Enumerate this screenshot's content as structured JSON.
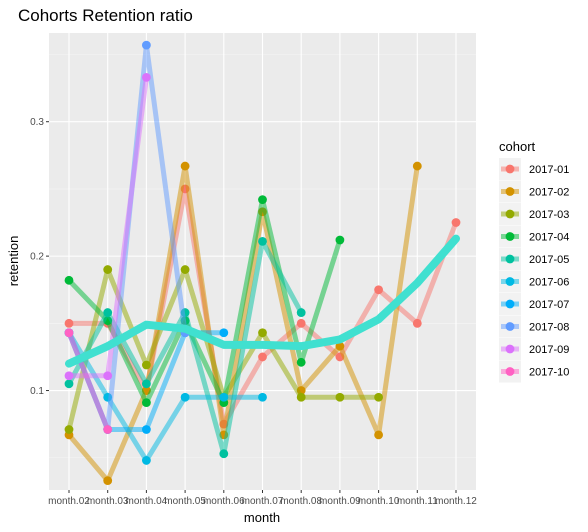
{
  "chart_data": {
    "type": "line",
    "title": "Cohorts Retention ratio",
    "xlabel": "month",
    "ylabel": "retention",
    "categories": [
      "month.02",
      "month.03",
      "month.04",
      "month.05",
      "month.06",
      "month.07",
      "month.08",
      "month.09",
      "month.10",
      "month.11",
      "month.12"
    ],
    "ylim": [
      0.026,
      0.366
    ],
    "yticks": [
      0.1,
      0.2,
      0.3
    ],
    "ytick_labels": [
      "0.1",
      "0.2",
      "0.3"
    ],
    "grid": true,
    "legend_title": "cohort",
    "legend_placement": "right",
    "series": [
      {
        "name": "2017-01",
        "color": "#F8766D",
        "values": [
          0.15,
          0.15,
          0.1,
          0.25,
          0.075,
          0.125,
          0.15,
          0.125,
          0.175,
          0.15,
          0.225
        ]
      },
      {
        "name": "2017-02",
        "color": "#D39200",
        "values": [
          0.067,
          0.033,
          0.1,
          0.267,
          0.067,
          0.233,
          0.1,
          0.133,
          0.067,
          0.267,
          null
        ]
      },
      {
        "name": "2017-03",
        "color": "#93AA00",
        "values": [
          0.071,
          0.19,
          0.119,
          0.19,
          0.095,
          0.143,
          0.095,
          0.095,
          0.095,
          null,
          null
        ]
      },
      {
        "name": "2017-04",
        "color": "#00BA38",
        "values": [
          0.182,
          0.152,
          0.091,
          0.152,
          0.091,
          0.242,
          0.121,
          0.212,
          null,
          null,
          null
        ]
      },
      {
        "name": "2017-05",
        "color": "#00C19F",
        "values": [
          0.105,
          0.158,
          0.105,
          0.158,
          0.053,
          0.211,
          0.158,
          null,
          null,
          null,
          null
        ]
      },
      {
        "name": "2017-06",
        "color": "#00B9E3",
        "values": [
          0.143,
          0.095,
          0.048,
          0.095,
          0.095,
          0.095,
          null,
          null,
          null,
          null,
          null
        ]
      },
      {
        "name": "2017-07",
        "color": "#00ADFA",
        "values": [
          0.143,
          0.071,
          0.071,
          0.143,
          0.143,
          null,
          null,
          null,
          null,
          null,
          null
        ]
      },
      {
        "name": "2017-08",
        "color": "#619CFF",
        "values": [
          0.143,
          0.071,
          0.357,
          0.143,
          null,
          null,
          null,
          null,
          null,
          null,
          null
        ]
      },
      {
        "name": "2017-09",
        "color": "#DB72FB",
        "values": [
          0.111,
          0.111,
          0.333,
          null,
          null,
          null,
          null,
          null,
          null,
          null,
          null
        ]
      },
      {
        "name": "2017-10",
        "color": "#FF61C3",
        "values": [
          0.143,
          0.071,
          null,
          null,
          null,
          null,
          null,
          null,
          null,
          null,
          null
        ]
      }
    ],
    "trend": {
      "color": "#40E0D0",
      "values": [
        0.12,
        0.133,
        0.149,
        0.146,
        0.134,
        0.134,
        0.133,
        0.138,
        0.153,
        0.18,
        0.213
      ]
    }
  }
}
